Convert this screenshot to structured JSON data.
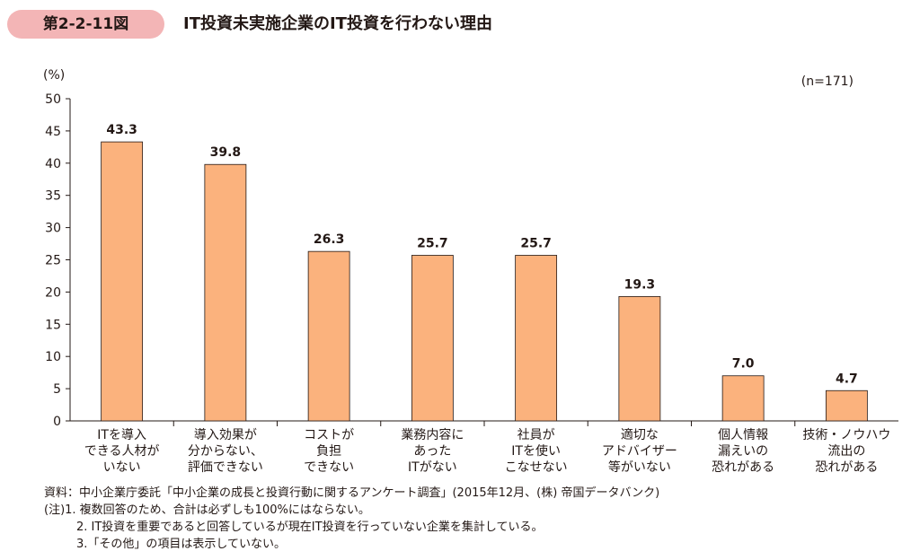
{
  "figure": {
    "number": "第2-2-11図",
    "title": "IT投資未実施企業のIT投資を行わない理由"
  },
  "chart_data": {
    "type": "bar",
    "title": "IT投資未実施企業のIT投資を行わない理由",
    "ylabel": "(%)",
    "n_label": "(n=171)",
    "ylim": [
      0,
      50
    ],
    "yticks": [
      "0",
      "5",
      "10",
      "15",
      "20",
      "25",
      "30",
      "35",
      "40",
      "45",
      "50"
    ],
    "categories": [
      [
        "ITを導入",
        "できる人材が",
        "いない"
      ],
      [
        "導入効果が",
        "分からない、",
        "評価できない"
      ],
      [
        "コストが",
        "負担",
        "できない"
      ],
      [
        "業務内容に",
        "あった",
        "ITがない"
      ],
      [
        "社員が",
        "ITを使い",
        "こなせない"
      ],
      [
        "適切な",
        "アドバイザー",
        "等がいない"
      ],
      [
        "個人情報",
        "漏えいの",
        "恐れがある"
      ],
      [
        "技術・ノウハウ",
        "流出の",
        "恐れがある"
      ]
    ],
    "values": [
      43.3,
      39.8,
      26.3,
      25.7,
      25.7,
      19.3,
      7.0,
      4.7
    ],
    "value_labels": [
      "43.3",
      "39.8",
      "26.3",
      "25.7",
      "25.7",
      "19.3",
      "7.0",
      "4.7"
    ],
    "bar_color": "#fbb27d",
    "bar_edge_color": "#231815",
    "grid": false
  },
  "notes": {
    "source": "資料：中小企業庁委託「中小企業の成長と投資行動に関するアンケート調査」(2015年12月、(株) 帝国データバンク)",
    "note1": "(注)1. 複数回答のため、合計は必ずしも100%にはならない。",
    "note2": "2. IT投資を重要であると回答しているが現在IT投資を行っていない企業を集計している。",
    "note3": "3.「その他」の項目は表示していない。"
  }
}
